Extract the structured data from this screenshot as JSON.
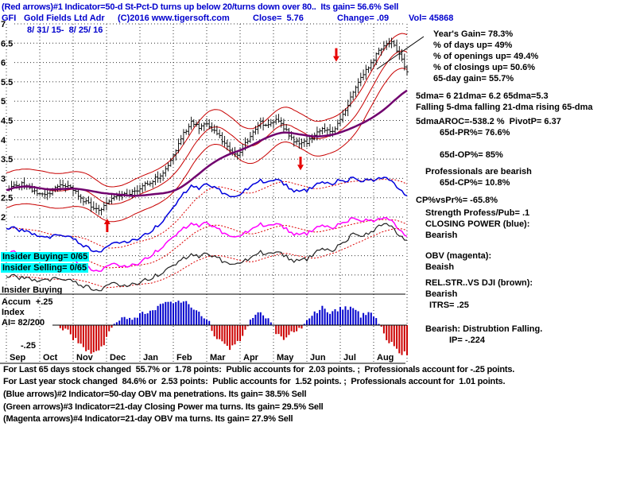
{
  "header": {
    "line1": "(Red arrows)#1 Indicator=50-d St-Pct-D turns up below 20/turns down over 80..  Its gain= 56.6% Sell",
    "ticker": "GFI",
    "company": "Gold Fields Ltd Adr",
    "copyright": "(C)2016 www.tigersoft.com",
    "close": "Close=  5.76",
    "change": "Change= .09",
    "vol": "Vol= 45868",
    "date_range": "8/ 31/ 15-  8/ 25/ 16"
  },
  "left_labels": {
    "insider_buying": "Insider Buying= 0/65",
    "insider_selling": "Insider Selling= 0/65",
    "insider_buying2": "Insider Buying",
    "accum": "Accum  +.25",
    "index": "Index",
    "ai": "AI= 82/200",
    "neg25": "-.25"
  },
  "right_panel": {
    "lines": [
      "Year's Gain= 78.3%",
      "% of days up= 49%",
      "% of openings up= 49.4%",
      "% of closings up= 50.6%",
      "65-day gain= 55.7%",
      "5dma= 6 21dma= 6.2 65dma=5.3",
      "Falling 5-dma falling 21-dma rising 65-dma",
      "5dmaAROC=-538.2 %  PivotP= 6.37",
      "65d-PR%= 76.6%",
      "65d-OP%= 85%",
      "Professionals are bearish",
      "65d-CP%= 10.8%",
      "CP%vsPr%= -65.8%",
      "Strength Profess/Pub= .1",
      "CLOSING POWER (blue):",
      "Bearish",
      "OBV (magenta):",
      "Beaish",
      "REL.STR..VS DJI (brown):",
      "Bearish",
      "ITRS= .25",
      "Bearish: Distrubtion Falling.",
      "IP= -.224"
    ]
  },
  "footer": {
    "lines": [
      "For Last 65 days stock changed  55.7% or  1.78 points:  Public accounts for  2.03 points. ;  Professionals account for -.25 points.",
      "For Last year stock changed  84.6% or  2.53 points:  Public accounts for  1.52 points. ;  Professionals account for  1.01 points.",
      "(Blue arrows)#2 Indicator=50-day OBV ma penetrations. Its gain= 38.5% Sell",
      "(Green arrows)#3 Indicator=21-day Closing Power ma turns. Its gain= 29.5% Sell",
      "(Magenta arrows)#4 Indicator=21-day OBV ma turns. Its gain= 27.9% Sell"
    ]
  },
  "chart_data": {
    "type": "candlestick+indicators",
    "title": "GFI Gold Fields Ltd Adr daily chart 8/31/15 - 8/25/16 with 21/65-day MAs, price bands, Closing Power, OBV, Relative Strength vs DJI and Accumulation Index",
    "months": [
      "Sep",
      "Oct",
      "Nov",
      "Dec",
      "Jan",
      "Feb",
      "Mar",
      "Apr",
      "May",
      "Jun",
      "Jul",
      "Aug"
    ],
    "yticks": [
      "7",
      "6.5",
      "6",
      "5.5",
      "5",
      "4.5",
      "4",
      "3.5",
      "3",
      "2.5",
      "2"
    ],
    "ytick_values": [
      7,
      6.5,
      6,
      5.5,
      5,
      4.5,
      4,
      3.5,
      3,
      2.5,
      2
    ],
    "weekly_close": [
      2.7,
      2.8,
      2.85,
      2.72,
      2.6,
      2.55,
      2.7,
      2.88,
      2.8,
      2.62,
      2.42,
      2.28,
      2.2,
      2.33,
      2.5,
      2.62,
      2.58,
      2.72,
      2.85,
      2.95,
      3.1,
      3.3,
      3.75,
      4.15,
      4.45,
      4.3,
      4.4,
      4.2,
      4.0,
      3.75,
      3.55,
      3.9,
      4.2,
      4.45,
      4.35,
      4.55,
      4.3,
      4.05,
      3.85,
      3.95,
      4.1,
      4.3,
      4.2,
      4.4,
      4.8,
      5.2,
      5.6,
      5.9,
      6.2,
      6.45,
      6.5,
      6.25,
      5.76
    ],
    "closing_power": [
      1.7,
      1.72,
      1.65,
      1.58,
      1.5,
      1.45,
      1.52,
      1.58,
      1.5,
      1.38,
      1.25,
      1.15,
      1.12,
      1.2,
      1.32,
      1.38,
      1.35,
      1.45,
      1.55,
      1.68,
      1.85,
      2.05,
      2.35,
      2.6,
      2.8,
      2.72,
      2.85,
      2.75,
      2.65,
      2.55,
      2.5,
      2.7,
      2.85,
      2.95,
      2.88,
      3.0,
      2.85,
      2.72,
      2.62,
      2.7,
      2.8,
      2.92,
      2.85,
      2.95,
      2.95,
      3.0,
      2.9,
      3.0,
      2.95,
      3.05,
      2.9,
      2.75,
      2.55
    ],
    "obv": [
      1.05,
      1.1,
      1.0,
      0.95,
      0.88,
      0.92,
      1.0,
      1.05,
      0.95,
      0.82,
      0.72,
      0.65,
      0.62,
      0.7,
      0.78,
      0.75,
      0.72,
      0.8,
      0.92,
      1.05,
      1.2,
      1.35,
      1.55,
      1.7,
      1.82,
      1.75,
      1.85,
      1.72,
      1.62,
      1.52,
      1.45,
      1.6,
      1.72,
      1.82,
      1.75,
      1.85,
      1.72,
      1.6,
      1.5,
      1.58,
      1.68,
      1.8,
      1.72,
      1.8,
      1.9,
      1.95,
      1.88,
      1.95,
      1.9,
      2.0,
      1.88,
      1.7,
      1.5
    ],
    "rel_strength": [
      0.45,
      0.48,
      0.42,
      0.38,
      0.32,
      0.35,
      0.42,
      0.45,
      0.38,
      0.28,
      0.2,
      0.15,
      0.12,
      0.2,
      0.28,
      0.25,
      0.22,
      0.3,
      0.38,
      0.45,
      0.55,
      0.65,
      0.8,
      0.92,
      1.02,
      0.95,
      1.05,
      0.95,
      0.88,
      0.8,
      0.75,
      0.88,
      1.0,
      1.1,
      1.02,
      1.12,
      1.0,
      0.9,
      0.82,
      0.92,
      1.05,
      1.2,
      1.12,
      1.25,
      1.4,
      1.55,
      1.48,
      1.6,
      1.7,
      1.85,
      1.72,
      1.55,
      1.4
    ],
    "accum_index": {
      "start_week": 7,
      "scale_top_label": "+.25",
      "scale_bottom_label": "-.25",
      "values": [
        -0.1,
        -0.2,
        -0.5,
        -0.8,
        -0.95,
        -0.9,
        -0.4,
        0.15,
        0.3,
        0.2,
        0.35,
        0.5,
        0.65,
        0.8,
        0.9,
        1.0,
        0.95,
        0.8,
        0.5,
        0.3,
        -0.3,
        -0.6,
        -0.75,
        -0.6,
        -0.2,
        0.3,
        0.5,
        0.2,
        -0.2,
        -0.45,
        -0.3,
        -0.15,
        0.2,
        0.5,
        0.7,
        0.5,
        0.6,
        0.75,
        0.6,
        0.4,
        0.5,
        0.3,
        -0.3,
        -0.6,
        -0.85,
        -1.0
      ]
    },
    "arrows": [
      {
        "dir": "up",
        "month": 3.02,
        "price": 1.96
      },
      {
        "dir": "down",
        "month": 8.81,
        "price": 3.21
      },
      {
        "dir": "down",
        "month": 9.88,
        "price": 6.02
      }
    ],
    "band_offset": 0.45,
    "colors": {
      "header_blue": "#0000cd",
      "candle": "#000000",
      "band_red": "#c80000",
      "ma65_purple": "#70006e",
      "closing_power_blue": "#0000dd",
      "obv_magenta": "#ff00ff",
      "rel_strength": "#222222",
      "hist_up_blue": "#0000cc",
      "hist_down_red": "#cc0000",
      "arrow_red": "#e60000",
      "highlight_cyan": "#00ffff"
    }
  }
}
